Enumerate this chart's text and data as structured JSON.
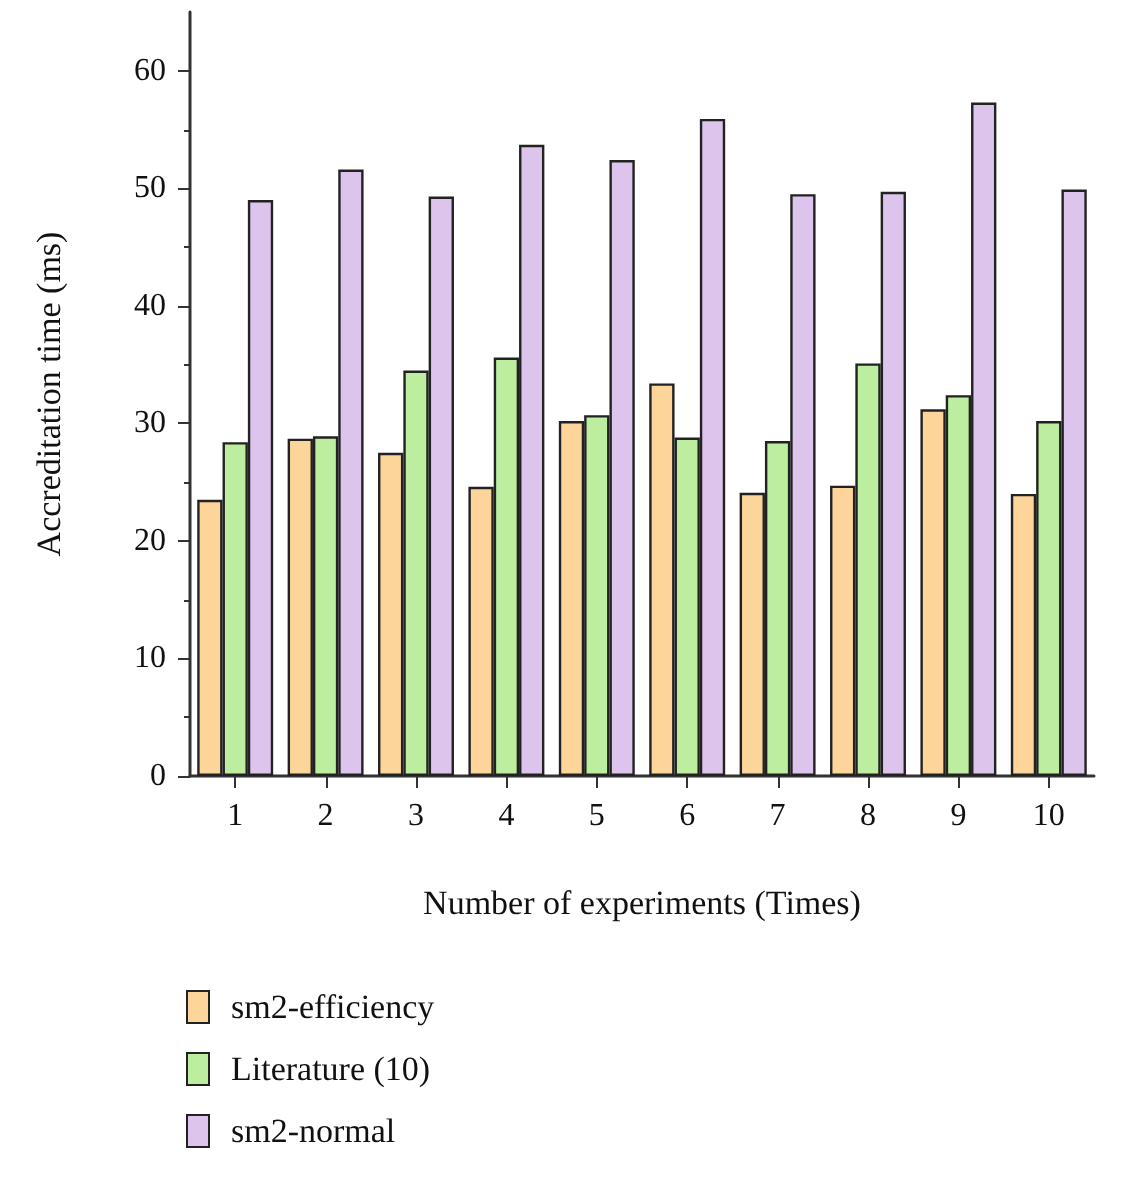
{
  "chart_data": {
    "type": "bar",
    "xlabel": "Number of experiments (Times)",
    "ylabel": "Accreditation time (ms)",
    "categories": [
      "1",
      "2",
      "3",
      "4",
      "5",
      "6",
      "7",
      "8",
      "9",
      "10"
    ],
    "series": [
      {
        "name": "sm2-efficiency",
        "color": "#fdd59b",
        "values": [
          23.5,
          28.7,
          27.5,
          24.6,
          30.2,
          33.4,
          24.1,
          24.7,
          31.2,
          24.0
        ]
      },
      {
        "name": "Literature (10)",
        "color": "#bdeea0",
        "values": [
          28.4,
          28.9,
          34.5,
          35.6,
          30.7,
          28.8,
          28.5,
          35.1,
          32.4,
          30.2
        ]
      },
      {
        "name": "sm2-normal",
        "color": "#dcc4ec",
        "values": [
          49.0,
          51.6,
          49.3,
          53.7,
          52.4,
          55.9,
          49.5,
          49.7,
          57.3,
          49.9
        ]
      }
    ],
    "ylim": [
      0,
      65
    ],
    "yticks": [
      0,
      10,
      20,
      30,
      40,
      50,
      60
    ],
    "grid": false,
    "legend": "bottom left"
  }
}
